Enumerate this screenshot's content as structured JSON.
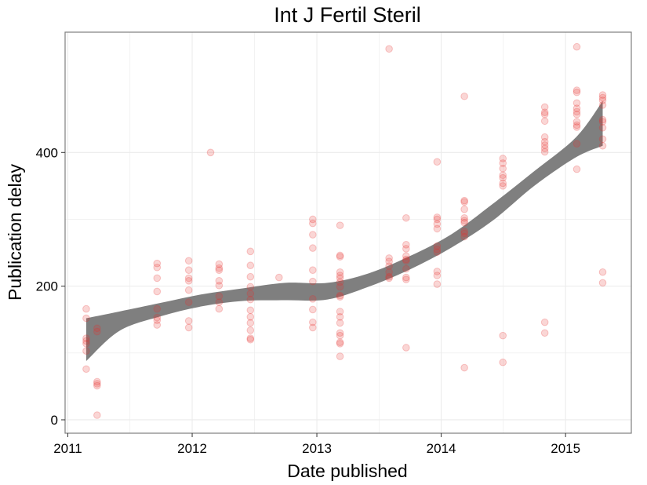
{
  "chart_data": {
    "type": "scatter",
    "title": "Int J Fertil Steril",
    "xlabel": "Date published",
    "ylabel": "Publication delay",
    "xlim": [
      "2010-12-24",
      "2015-07-13"
    ],
    "ylim": [
      -20,
      580
    ],
    "x_ticks": [
      {
        "date": "2011-01-01",
        "label": "2011"
      },
      {
        "date": "2012-01-01",
        "label": "2012"
      },
      {
        "date": "2013-01-01",
        "label": "2013"
      },
      {
        "date": "2014-01-01",
        "label": "2014"
      },
      {
        "date": "2015-01-01",
        "label": "2015"
      }
    ],
    "y_ticks": [
      0,
      200,
      400
    ],
    "grid": true,
    "colors": {
      "points": "#e8302e",
      "smooth": "#7f7f7f",
      "grid": "#ebebeb",
      "border": "#7f7f7f"
    },
    "points": [
      [
        "2011-02-24",
        166
      ],
      [
        "2011-02-24",
        152
      ],
      [
        "2011-02-24",
        122
      ],
      [
        "2011-02-24",
        118
      ],
      [
        "2011-02-24",
        114
      ],
      [
        "2011-02-24",
        103
      ],
      [
        "2011-02-24",
        76
      ],
      [
        "2011-03-28",
        137
      ],
      [
        "2011-03-28",
        132
      ],
      [
        "2011-03-28",
        57
      ],
      [
        "2011-03-28",
        54
      ],
      [
        "2011-03-28",
        51
      ],
      [
        "2011-03-28",
        7
      ],
      [
        "2011-09-20",
        234
      ],
      [
        "2011-09-20",
        228
      ],
      [
        "2011-09-20",
        212
      ],
      [
        "2011-09-20",
        192
      ],
      [
        "2011-09-20",
        166
      ],
      [
        "2011-09-20",
        153
      ],
      [
        "2011-09-20",
        149
      ],
      [
        "2011-09-20",
        142
      ],
      [
        "2011-12-22",
        238
      ],
      [
        "2011-12-22",
        224
      ],
      [
        "2011-12-22",
        212
      ],
      [
        "2011-12-22",
        208
      ],
      [
        "2011-12-22",
        194
      ],
      [
        "2011-12-22",
        176
      ],
      [
        "2011-12-22",
        148
      ],
      [
        "2011-12-22",
        138
      ],
      [
        "2012-02-24",
        400
      ],
      [
        "2012-03-20",
        233
      ],
      [
        "2012-03-20",
        227
      ],
      [
        "2012-03-20",
        224
      ],
      [
        "2012-03-20",
        208
      ],
      [
        "2012-03-20",
        201
      ],
      [
        "2012-03-20",
        185
      ],
      [
        "2012-03-20",
        176
      ],
      [
        "2012-03-20",
        166
      ],
      [
        "2012-06-20",
        252
      ],
      [
        "2012-06-20",
        231
      ],
      [
        "2012-06-20",
        214
      ],
      [
        "2012-06-20",
        199
      ],
      [
        "2012-06-20",
        189
      ],
      [
        "2012-06-20",
        180
      ],
      [
        "2012-06-20",
        164
      ],
      [
        "2012-06-20",
        154
      ],
      [
        "2012-06-20",
        145
      ],
      [
        "2012-06-20",
        134
      ],
      [
        "2012-06-20",
        122
      ],
      [
        "2012-06-20",
        120
      ],
      [
        "2012-09-12",
        213
      ],
      [
        "2012-12-20",
        300
      ],
      [
        "2012-12-20",
        294
      ],
      [
        "2012-12-20",
        277
      ],
      [
        "2012-12-20",
        257
      ],
      [
        "2012-12-20",
        224
      ],
      [
        "2012-12-20",
        207
      ],
      [
        "2012-12-20",
        181
      ],
      [
        "2012-12-20",
        165
      ],
      [
        "2012-12-20",
        146
      ],
      [
        "2012-12-20",
        138
      ],
      [
        "2013-03-10",
        291
      ],
      [
        "2013-03-10",
        246
      ],
      [
        "2013-03-10",
        244
      ],
      [
        "2013-03-10",
        221
      ],
      [
        "2013-03-10",
        216
      ],
      [
        "2013-03-10",
        212
      ],
      [
        "2013-03-10",
        206
      ],
      [
        "2013-03-10",
        199
      ],
      [
        "2013-03-10",
        186
      ],
      [
        "2013-03-10",
        184
      ],
      [
        "2013-03-10",
        162
      ],
      [
        "2013-03-10",
        154
      ],
      [
        "2013-03-10",
        145
      ],
      [
        "2013-03-10",
        130
      ],
      [
        "2013-03-10",
        126
      ],
      [
        "2013-03-10",
        116
      ],
      [
        "2013-03-10",
        114
      ],
      [
        "2013-03-10",
        95
      ],
      [
        "2013-08-01",
        555
      ],
      [
        "2013-08-01",
        242
      ],
      [
        "2013-08-01",
        237
      ],
      [
        "2013-08-01",
        230
      ],
      [
        "2013-08-01",
        221
      ],
      [
        "2013-08-01",
        214
      ],
      [
        "2013-08-01",
        212
      ],
      [
        "2013-09-20",
        302
      ],
      [
        "2013-09-20",
        262
      ],
      [
        "2013-09-20",
        256
      ],
      [
        "2013-09-20",
        245
      ],
      [
        "2013-09-20",
        240
      ],
      [
        "2013-09-20",
        238
      ],
      [
        "2013-09-20",
        226
      ],
      [
        "2013-09-20",
        213
      ],
      [
        "2013-09-20",
        210
      ],
      [
        "2013-09-20",
        108
      ],
      [
        "2013-12-20",
        386
      ],
      [
        "2013-12-20",
        303
      ],
      [
        "2013-12-20",
        300
      ],
      [
        "2013-12-20",
        293
      ],
      [
        "2013-12-20",
        286
      ],
      [
        "2013-12-20",
        260
      ],
      [
        "2013-12-20",
        255
      ],
      [
        "2013-12-20",
        251
      ],
      [
        "2013-12-20",
        222
      ],
      [
        "2013-12-20",
        216
      ],
      [
        "2013-12-20",
        203
      ],
      [
        "2014-03-10",
        484
      ],
      [
        "2014-03-10",
        328
      ],
      [
        "2014-03-10",
        326
      ],
      [
        "2014-03-10",
        315
      ],
      [
        "2014-03-10",
        302
      ],
      [
        "2014-03-10",
        298
      ],
      [
        "2014-03-10",
        295
      ],
      [
        "2014-03-10",
        282
      ],
      [
        "2014-03-10",
        279
      ],
      [
        "2014-03-10",
        274
      ],
      [
        "2014-03-10",
        78
      ],
      [
        "2014-07-01",
        391
      ],
      [
        "2014-07-01",
        384
      ],
      [
        "2014-07-01",
        376
      ],
      [
        "2014-07-01",
        366
      ],
      [
        "2014-07-01",
        362
      ],
      [
        "2014-07-01",
        354
      ],
      [
        "2014-07-01",
        350
      ],
      [
        "2014-07-01",
        126
      ],
      [
        "2014-07-01",
        86
      ],
      [
        "2014-11-01",
        468
      ],
      [
        "2014-11-01",
        460
      ],
      [
        "2014-11-01",
        457
      ],
      [
        "2014-11-01",
        447
      ],
      [
        "2014-11-01",
        423
      ],
      [
        "2014-11-01",
        416
      ],
      [
        "2014-11-01",
        411
      ],
      [
        "2014-11-01",
        406
      ],
      [
        "2014-11-01",
        401
      ],
      [
        "2014-11-01",
        146
      ],
      [
        "2014-11-01",
        130
      ],
      [
        "2015-02-03",
        558
      ],
      [
        "2015-02-03",
        493
      ],
      [
        "2015-02-03",
        490
      ],
      [
        "2015-02-03",
        474
      ],
      [
        "2015-02-03",
        466
      ],
      [
        "2015-02-03",
        461
      ],
      [
        "2015-02-03",
        457
      ],
      [
        "2015-02-03",
        446
      ],
      [
        "2015-02-03",
        441
      ],
      [
        "2015-02-03",
        438
      ],
      [
        "2015-02-03",
        413
      ],
      [
        "2015-02-03",
        375
      ],
      [
        "2015-04-20",
        486
      ],
      [
        "2015-04-20",
        482
      ],
      [
        "2015-04-20",
        478
      ],
      [
        "2015-04-20",
        471
      ],
      [
        "2015-04-20",
        449
      ],
      [
        "2015-04-20",
        446
      ],
      [
        "2015-04-20",
        437
      ],
      [
        "2015-04-20",
        420
      ],
      [
        "2015-04-20",
        410
      ],
      [
        "2015-04-20",
        221
      ],
      [
        "2015-04-20",
        205
      ]
    ],
    "smooth_band": [
      {
        "x": "2011-02-24",
        "lower": 88,
        "upper": 152
      },
      {
        "x": "2011-06-01",
        "lower": 133,
        "upper": 162
      },
      {
        "x": "2011-10-01",
        "lower": 155,
        "upper": 175
      },
      {
        "x": "2012-02-01",
        "lower": 170,
        "upper": 188
      },
      {
        "x": "2012-06-01",
        "lower": 178,
        "upper": 197
      },
      {
        "x": "2012-10-01",
        "lower": 179,
        "upper": 205
      },
      {
        "x": "2013-02-01",
        "lower": 180,
        "upper": 205
      },
      {
        "x": "2013-06-01",
        "lower": 199,
        "upper": 219
      },
      {
        "x": "2013-10-01",
        "lower": 225,
        "upper": 245
      },
      {
        "x": "2014-02-01",
        "lower": 258,
        "upper": 278
      },
      {
        "x": "2014-06-01",
        "lower": 298,
        "upper": 323
      },
      {
        "x": "2014-10-01",
        "lower": 350,
        "upper": 372
      },
      {
        "x": "2015-02-01",
        "lower": 393,
        "upper": 423
      },
      {
        "x": "2015-04-20",
        "lower": 410,
        "upper": 477
      }
    ]
  }
}
